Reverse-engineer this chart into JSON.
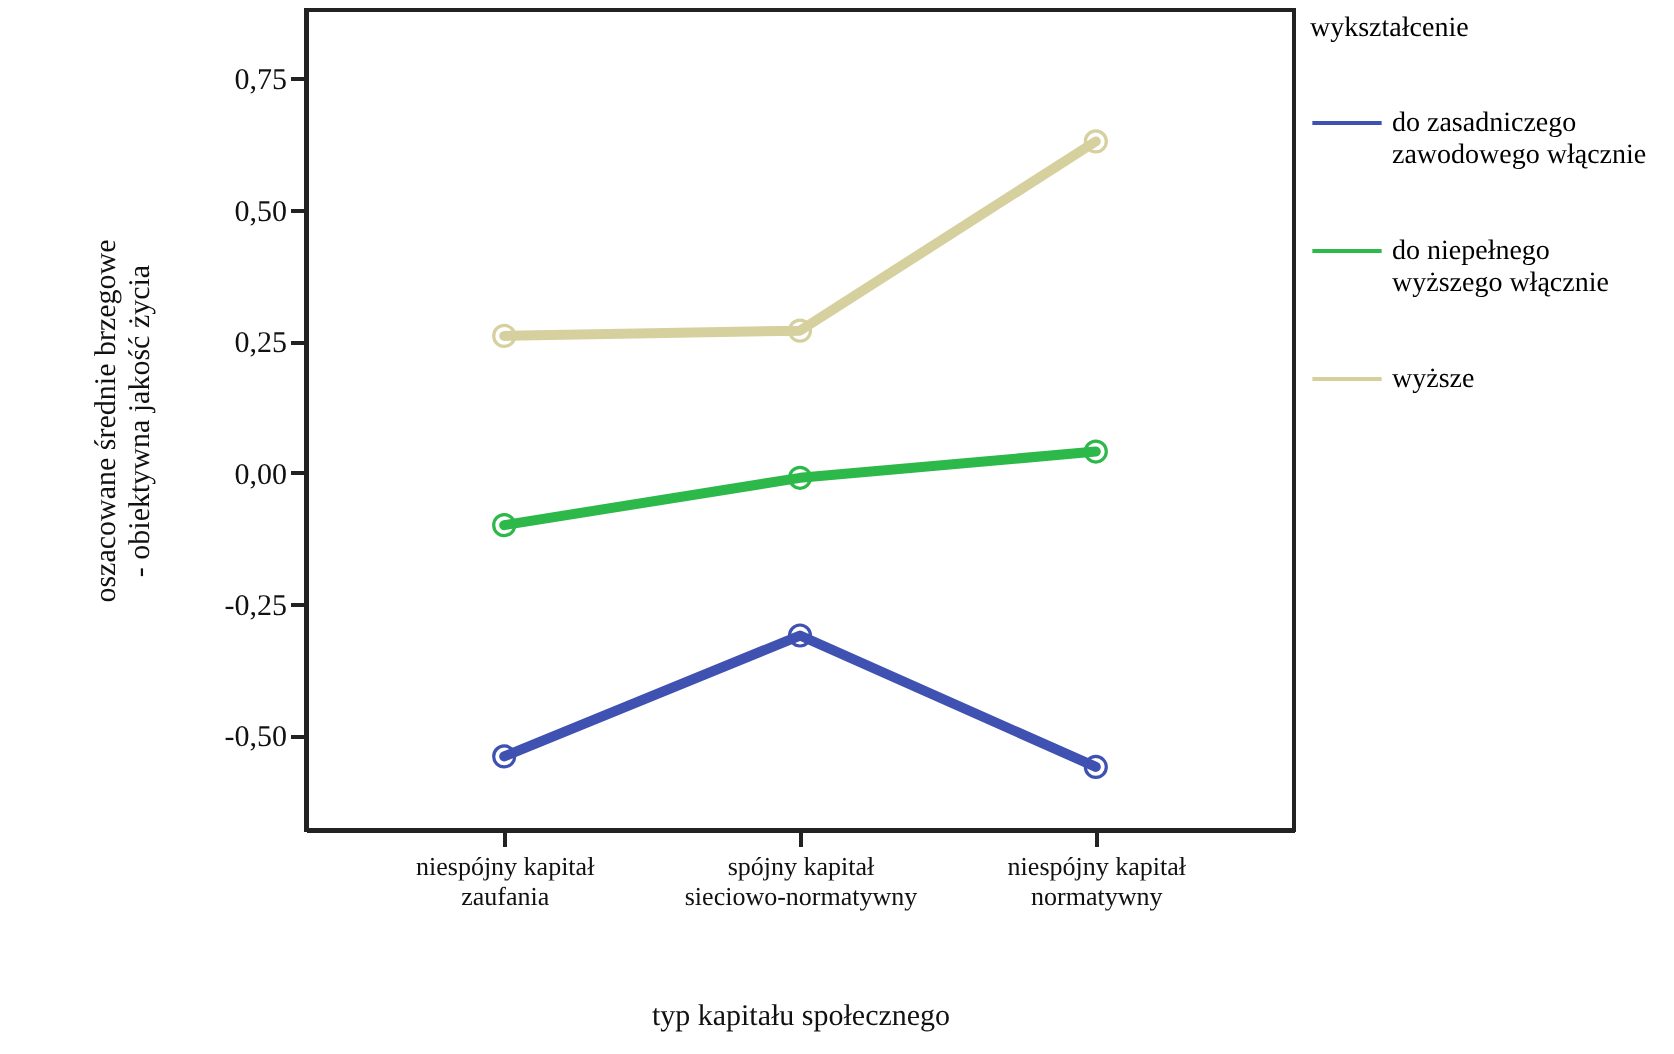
{
  "chart_data": {
    "type": "line",
    "xlabel": "typ kapitału społecznego",
    "ylabel": "oszacowane średnie brzegowe\n- obiektywna jakość życia",
    "legend_title": "wykształcenie",
    "categories": [
      "niespójny kapitał\nzaufania",
      "spójny kapitał\nsieciowo-normatywny",
      "niespójny kapitał\nnormatywny"
    ],
    "series": [
      {
        "name": "do zasadniczego\nzawodowego włącznie",
        "color": "#3f52b2",
        "values": [
          -0.54,
          -0.31,
          -0.56
        ]
      },
      {
        "name": "do niepełnego\nwyższego włącznie",
        "color": "#2db84a",
        "values": [
          -0.1,
          -0.01,
          0.04
        ]
      },
      {
        "name": "wyższe",
        "color": "#d6d09e",
        "values": [
          0.26,
          0.27,
          0.63
        ]
      }
    ],
    "ylim": [
      -0.68,
      0.88
    ],
    "yticks": [
      {
        "value": -0.5,
        "label": "-0,50"
      },
      {
        "value": -0.25,
        "label": "-0,25"
      },
      {
        "value": 0,
        "label": "0,00"
      },
      {
        "value": 0.25,
        "label": "0,25"
      },
      {
        "value": 0.5,
        "label": "0,50"
      },
      {
        "value": 0.75,
        "label": "0,75"
      }
    ],
    "grid": false,
    "legend": "top right",
    "marker": "circle",
    "line_style": "solid"
  }
}
